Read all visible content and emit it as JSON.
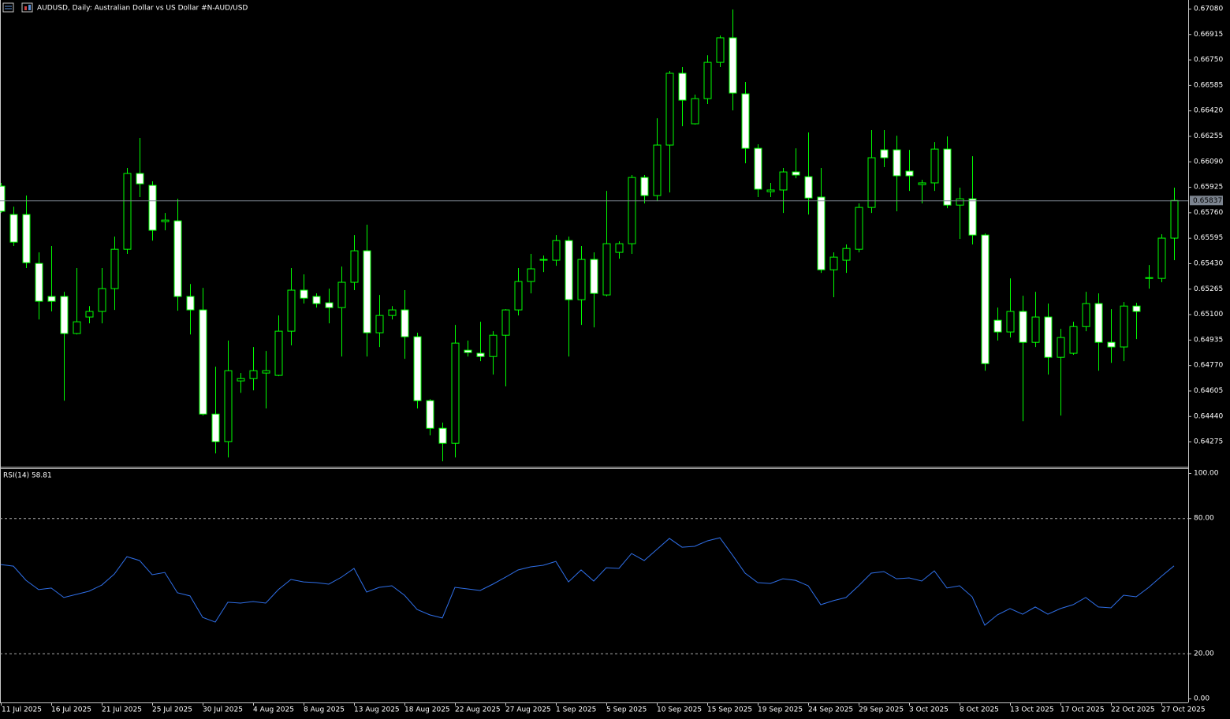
{
  "chart_data": [
    {
      "type": "candlestick",
      "title": "AUDUSD, Daily:  Australian Dollar vs US Dollar #N-AUD/USD",
      "categories": [
        "11 Jul 2025",
        null,
        null,
        null,
        "16 Jul 2025",
        null,
        null,
        null,
        "21 Jul 2025",
        null,
        null,
        null,
        "25 Jul 2025",
        null,
        null,
        null,
        "30 Jul 2025",
        null,
        null,
        null,
        "4 Aug 2025",
        null,
        null,
        null,
        "8 Aug 2025",
        null,
        null,
        null,
        "13 Aug 2025",
        null,
        null,
        null,
        "18 Aug 2025",
        null,
        null,
        null,
        "22 Aug 2025",
        null,
        null,
        null,
        "27 Aug 2025",
        null,
        null,
        null,
        "1 Sep 2025",
        null,
        null,
        null,
        "5 Sep 2025",
        null,
        null,
        null,
        "10 Sep 2025",
        null,
        null,
        null,
        "15 Sep 2025",
        null,
        null,
        null,
        "19 Sep 2025",
        null,
        null,
        null,
        "24 Sep 2025",
        null,
        null,
        null,
        "29 Sep 2025",
        null,
        null,
        null,
        "3 Oct 2025",
        null,
        null,
        null,
        "8 Oct 2025",
        null,
        null,
        null,
        "13 Oct 2025",
        null,
        null,
        null,
        "17 Oct 2025",
        null,
        null,
        null,
        "22 Oct 2025",
        null,
        null,
        null,
        "27 Oct 2025",
        null
      ],
      "open": [
        0.6593,
        0.65746,
        0.65746,
        0.65429,
        0.65215,
        0.65215,
        0.64975,
        0.65082,
        0.65118,
        0.65266,
        0.65521,
        0.66012,
        0.65935,
        0.657,
        0.65705,
        0.65215,
        0.65128,
        0.64453,
        0.64274,
        0.64668,
        0.64683,
        0.64719,
        0.64704,
        0.6499,
        0.65256,
        0.65215,
        0.65174,
        0.65143,
        0.65307,
        0.65511,
        0.6498,
        0.65092,
        0.65128,
        0.64954,
        0.6454,
        0.64361,
        0.64264,
        0.64867,
        0.64847,
        0.64826,
        0.64964,
        0.65128,
        0.65312,
        0.6545,
        0.6545,
        0.65577,
        0.65194,
        0.65455,
        0.65225,
        0.65501,
        0.65557,
        0.65986,
        0.65869,
        0.66196,
        0.66661,
        0.66334,
        0.66497,
        0.66732,
        0.66891,
        0.66528,
        0.66175,
        0.65894,
        0.65905,
        0.66022,
        0.65991,
        0.65859,
        0.65388,
        0.6545,
        0.65521,
        0.65792,
        0.66165,
        0.66165,
        0.66027,
        0.6594,
        0.65951,
        0.6617,
        0.65807,
        0.65848,
        0.65613,
        0.65061,
        0.64985,
        0.65118,
        0.64918,
        0.65082,
        0.64821,
        0.64847,
        0.6502,
        0.65169,
        0.64918,
        0.64888,
        0.65153,
        0.65332,
        0.65332,
        0.65593
      ],
      "high": [
        0.65951,
        0.65797,
        0.65869,
        0.65501,
        0.65542,
        0.65245,
        0.65399,
        0.65153,
        0.65399,
        0.65603,
        0.66048,
        0.66242,
        0.65961,
        0.65756,
        0.65848,
        0.65296,
        0.65271,
        0.6476,
        0.64929,
        0.64719,
        0.64888,
        0.64862,
        0.65092,
        0.65399,
        0.65358,
        0.65235,
        0.65266,
        0.65409,
        0.65613,
        0.6568,
        0.65225,
        0.65153,
        0.65256,
        0.6498,
        0.6455,
        0.64397,
        0.65031,
        0.64929,
        0.65051,
        0.6499,
        0.65133,
        0.65399,
        0.65491,
        0.6548,
        0.65613,
        0.65603,
        0.65542,
        0.65501,
        0.65899,
        0.65572,
        0.66002,
        0.66002,
        0.6637,
        0.66676,
        0.66702,
        0.66523,
        0.66778,
        0.66906,
        0.67075,
        0.66605,
        0.66201,
        0.65951,
        0.66048,
        0.66175,
        0.66278,
        0.66048,
        0.65501,
        0.65552,
        0.65818,
        0.66293,
        0.66293,
        0.66257,
        0.66165,
        0.65971,
        0.66216,
        0.66252,
        0.6592,
        0.66124,
        0.65623,
        0.65143,
        0.65332,
        0.6522,
        0.65245,
        0.65169,
        0.65005,
        0.65051,
        0.65245,
        0.65235,
        0.65133,
        0.65179,
        0.65174,
        0.65419,
        0.65618,
        0.6592
      ],
      "low": [
        0.65756,
        0.65542,
        0.65399,
        0.65066,
        0.65118,
        0.6454,
        0.64969,
        0.65041,
        0.65041,
        0.65128,
        0.65491,
        0.65859,
        0.65577,
        0.65644,
        0.65123,
        0.64969,
        0.64443,
        0.64198,
        0.64172,
        0.64591,
        0.64607,
        0.64489,
        0.64699,
        0.64898,
        0.65169,
        0.65143,
        0.65041,
        0.64826,
        0.65256,
        0.64826,
        0.64888,
        0.65066,
        0.64811,
        0.64489,
        0.64315,
        0.64147,
        0.64172,
        0.64826,
        0.64796,
        0.64709,
        0.64632,
        0.65092,
        0.65235,
        0.65373,
        0.65414,
        0.64826,
        0.65031,
        0.65015,
        0.65215,
        0.6546,
        0.65491,
        0.65818,
        0.65833,
        0.65889,
        0.66318,
        0.66329,
        0.66462,
        0.66702,
        0.66421,
        0.66078,
        0.65859,
        0.65859,
        0.65756,
        0.65981,
        0.65746,
        0.65368,
        0.6521,
        0.65368,
        0.65501,
        0.65756,
        0.66053,
        0.65767,
        0.65899,
        0.65818,
        0.65899,
        0.65787,
        0.65588,
        0.65552,
        0.64734,
        0.64929,
        0.64949,
        0.64407,
        0.64888,
        0.64709,
        0.64443,
        0.64837,
        0.6499,
        0.64734,
        0.64785,
        0.64796,
        0.64939,
        0.65266,
        0.65307,
        0.6545
      ],
      "close": [
        0.65767,
        0.65567,
        0.65434,
        0.65184,
        0.65184,
        0.64975,
        0.65051,
        0.65118,
        0.65266,
        0.65521,
        0.66012,
        0.65945,
        0.65644,
        0.6571,
        0.65215,
        0.65128,
        0.64453,
        0.64274,
        0.64734,
        0.64683,
        0.64734,
        0.64734,
        0.6499,
        0.65256,
        0.65204,
        0.65169,
        0.65143,
        0.65307,
        0.65511,
        0.6498,
        0.65092,
        0.65128,
        0.64954,
        0.6454,
        0.64361,
        0.64264,
        0.64913,
        0.64852,
        0.64826,
        0.64964,
        0.65128,
        0.65312,
        0.65394,
        0.65455,
        0.65577,
        0.65194,
        0.65455,
        0.65235,
        0.65557,
        0.65557,
        0.65986,
        0.65869,
        0.66196,
        0.66661,
        0.66487,
        0.66497,
        0.66732,
        0.66891,
        0.66533,
        0.66175,
        0.6591,
        0.65905,
        0.66022,
        0.66002,
        0.65853,
        0.65388,
        0.6547,
        0.65526,
        0.65792,
        0.66114,
        0.66114,
        0.65997,
        0.65997,
        0.65951,
        0.6617,
        0.65807,
        0.65848,
        0.65613,
        0.6478,
        0.64985,
        0.65118,
        0.64918,
        0.65082,
        0.64821,
        0.64949,
        0.6502,
        0.65169,
        0.64918,
        0.64888,
        0.65153,
        0.65118,
        0.65337,
        0.65593,
        0.65837
      ],
      "ylim": [
        0.64117,
        0.67136
      ],
      "yticks": [
        {
          "value": 0.6708,
          "label": "0.67080"
        },
        0.66915,
        {
          "value": 0.6675,
          "label": "0.66750"
        },
        0.66585,
        {
          "value": 0.6642,
          "label": "0.66420"
        },
        0.66255,
        {
          "value": 0.6609,
          "label": "0.66090"
        },
        0.65925,
        {
          "value": 0.6576,
          "label": "0.65760"
        },
        0.65595,
        {
          "value": 0.6543,
          "label": "0.65430"
        },
        0.65265,
        {
          "value": 0.651,
          "label": "0.65100"
        },
        0.64935,
        {
          "value": 0.6477,
          "label": "0.64770"
        },
        0.64605,
        {
          "value": 0.6444,
          "label": "0.64440"
        },
        0.64275
      ],
      "color": "#00ff00",
      "bear_color": "#ffffff",
      "bull_color": "#000000"
    },
    {
      "type": "line",
      "title": "RSI(14) 58.81",
      "values": [
        59.4,
        58.7,
        52.4,
        48.3,
        49.0,
        44.8,
        46.2,
        47.6,
        50.3,
        55.2,
        62.9,
        61.2,
        54.9,
        55.9,
        46.9,
        45.5,
        36.0,
        33.9,
        42.7,
        42.3,
        43.0,
        42.3,
        48.3,
        52.8,
        51.7,
        51.4,
        50.7,
        53.8,
        57.7,
        47.2,
        49.3,
        50.0,
        45.8,
        39.5,
        37.1,
        35.7,
        49.3,
        48.6,
        47.9,
        50.7,
        53.8,
        57.0,
        58.4,
        59.1,
        60.8,
        51.7,
        57.0,
        52.1,
        58.0,
        57.7,
        64.3,
        61.2,
        66.1,
        71.0,
        67.1,
        67.5,
        69.9,
        71.3,
        63.6,
        55.6,
        51.4,
        51.0,
        53.1,
        52.4,
        50.0,
        41.6,
        43.4,
        44.8,
        50.0,
        55.6,
        56.3,
        53.1,
        53.5,
        52.1,
        56.6,
        49.0,
        50.0,
        45.1,
        32.5,
        37.1,
        39.9,
        37.4,
        40.6,
        37.4,
        39.9,
        41.6,
        44.8,
        40.6,
        40.2,
        45.8,
        45.1,
        49.3,
        54.2,
        58.81
      ],
      "color": "#2f6fe8",
      "ylim": [
        -1.75,
        102.1
      ],
      "yticks": [
        {
          "value": 100,
          "label": "100.00"
        },
        {
          "value": 80,
          "label": "80.00"
        },
        {
          "value": 20,
          "label": "20.00"
        },
        {
          "value": 0,
          "label": "0.00"
        }
      ],
      "levels": [
        80,
        20
      ]
    }
  ]
}
